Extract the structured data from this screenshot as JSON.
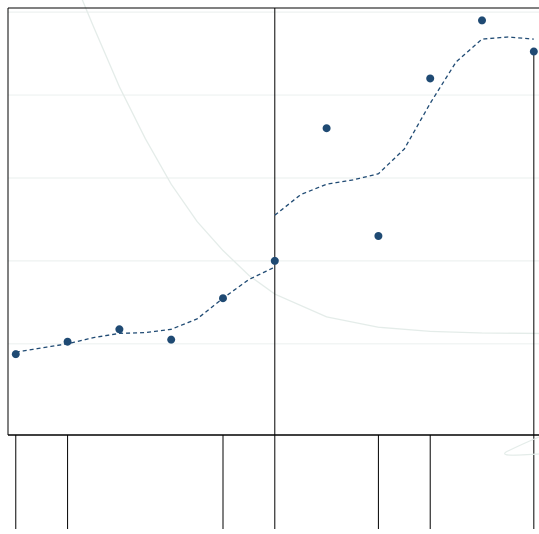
{
  "chart_data": {
    "type": "scatter",
    "title": "",
    "xlabel": "",
    "ylabel": "",
    "grid": "horizontal",
    "legend": "none",
    "xlim": [
      -0.15,
      10.1
    ],
    "ylim": [
      0,
      10.3
    ],
    "gridlines_y": [
      2.2,
      4.2,
      6.2,
      8.2,
      10.2
    ],
    "threshold_x": 5,
    "points": [
      {
        "x": 0,
        "y": 1.95
      },
      {
        "x": 1,
        "y": 2.25
      },
      {
        "x": 2,
        "y": 2.55
      },
      {
        "x": 3,
        "y": 2.3
      },
      {
        "x": 4,
        "y": 3.3
      },
      {
        "x": 5,
        "y": 4.2
      },
      {
        "x": 6,
        "y": 7.4
      },
      {
        "x": 7,
        "y": 4.8
      },
      {
        "x": 8,
        "y": 8.6
      },
      {
        "x": 9,
        "y": 10.0
      },
      {
        "x": 10,
        "y": 9.25
      }
    ],
    "fit_series": [
      {
        "x": 0,
        "y": 2.0
      },
      {
        "x": 0.5,
        "y": 2.1
      },
      {
        "x": 1,
        "y": 2.2
      },
      {
        "x": 1.5,
        "y": 2.35
      },
      {
        "x": 2,
        "y": 2.45
      },
      {
        "x": 2.5,
        "y": 2.47
      },
      {
        "x": 3,
        "y": 2.55
      },
      {
        "x": 3.5,
        "y": 2.8
      },
      {
        "x": 4,
        "y": 3.3
      },
      {
        "x": 4.5,
        "y": 3.75
      },
      {
        "x": 5,
        "y": 4.05
      },
      {
        "x": 5,
        "y": 5.3
      },
      {
        "x": 5.5,
        "y": 5.8
      },
      {
        "x": 6,
        "y": 6.05
      },
      {
        "x": 6.5,
        "y": 6.15
      },
      {
        "x": 7,
        "y": 6.3
      },
      {
        "x": 7.5,
        "y": 6.9
      },
      {
        "x": 8,
        "y": 8.0
      },
      {
        "x": 8.5,
        "y": 9.0
      },
      {
        "x": 9,
        "y": 9.55
      },
      {
        "x": 9.5,
        "y": 9.6
      },
      {
        "x": 10,
        "y": 9.55
      }
    ],
    "background_curve": [
      {
        "x": 1.25,
        "y": 10.6
      },
      {
        "x": 1.5,
        "y": 9.85
      },
      {
        "x": 2,
        "y": 8.4
      },
      {
        "x": 2.5,
        "y": 7.15
      },
      {
        "x": 3,
        "y": 6.05
      },
      {
        "x": 3.5,
        "y": 5.15
      },
      {
        "x": 4,
        "y": 4.45
      },
      {
        "x": 4.5,
        "y": 3.85
      },
      {
        "x": 5,
        "y": 3.4
      },
      {
        "x": 6,
        "y": 2.85
      },
      {
        "x": 7,
        "y": 2.6
      },
      {
        "x": 8,
        "y": 2.5
      },
      {
        "x": 9,
        "y": 2.46
      },
      {
        "x": 10.1,
        "y": 2.45
      }
    ],
    "rug_x": [
      0,
      1,
      4,
      5,
      7,
      8,
      10
    ],
    "colors": {
      "points": "#1f4a73",
      "fit_line": "#1f4a73",
      "background_curve": "#e4ece9",
      "gridlines": "#eef2f1",
      "axes": "#000000"
    }
  }
}
